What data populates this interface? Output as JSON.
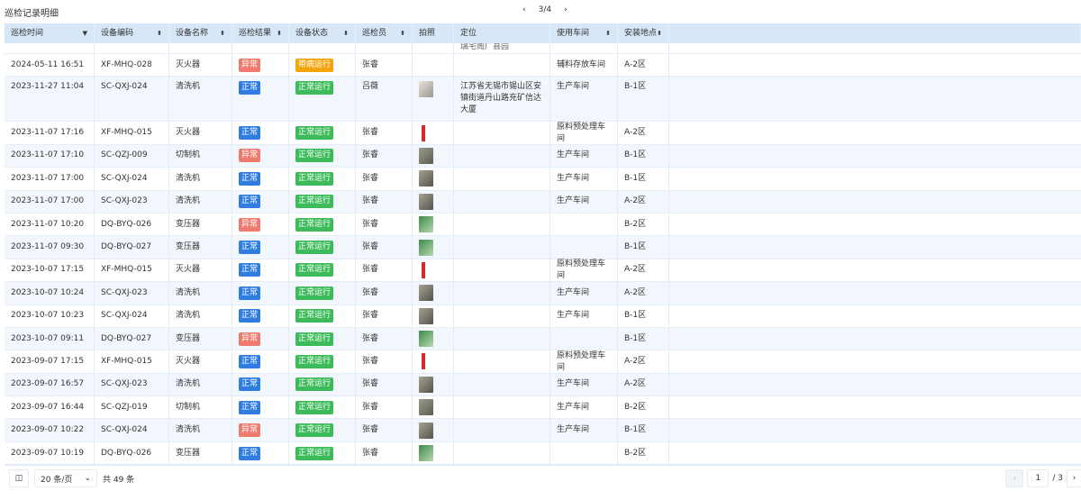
{
  "title": "巡检记录明细",
  "top_pager": {
    "prev": "‹",
    "page": "3/4",
    "next": "›"
  },
  "columns": [
    "巡检时间",
    "设备编码",
    "设备名称",
    "巡检结果",
    "设备状态",
    "巡检员",
    "拍照",
    "定位",
    "使用车间",
    "安装地点"
  ],
  "partial_row_location": "璃宅阁广县园",
  "rows": [
    {
      "time": "2024-05-11 16:51",
      "code": "XF-MHQ-028",
      "name": "灭火器",
      "result": "异常",
      "status": "带病运行",
      "inspector": "张睿",
      "photo": "",
      "location": "",
      "workshop": "辅料存放车间",
      "site": "A-2区"
    },
    {
      "time": "2023-11-27 11:04",
      "code": "SC-QXJ-024",
      "name": "清洗机",
      "result": "正常",
      "status": "正常运行",
      "inspector": "吕薇",
      "photo": "cabinet",
      "location": "江苏省无锡市锡山区安镇街道丹山路充矿信达大厦",
      "workshop": "生产车间",
      "site": "B-1区"
    },
    {
      "time": "2023-11-07 17:16",
      "code": "XF-MHQ-015",
      "name": "灭火器",
      "result": "正常",
      "status": "正常运行",
      "inspector": "张睿",
      "photo": "extinguisher",
      "location": "",
      "workshop": "原料预处理车间",
      "site": "A-2区"
    },
    {
      "time": "2023-11-07 17:10",
      "code": "SC-QZJ-009",
      "name": "切制机",
      "result": "异常",
      "status": "正常运行",
      "inspector": "张睿",
      "photo": "machine",
      "location": "",
      "workshop": "生产车间",
      "site": "B-1区"
    },
    {
      "time": "2023-11-07 17:00",
      "code": "SC-QXJ-024",
      "name": "清洗机",
      "result": "正常",
      "status": "正常运行",
      "inspector": "张睿",
      "photo": "washer",
      "location": "",
      "workshop": "生产车间",
      "site": "B-1区"
    },
    {
      "time": "2023-11-07 17:00",
      "code": "SC-QXJ-023",
      "name": "清洗机",
      "result": "正常",
      "status": "正常运行",
      "inspector": "张睿",
      "photo": "washer",
      "location": "",
      "workshop": "生产车间",
      "site": "A-2区"
    },
    {
      "time": "2023-11-07 10:20",
      "code": "DQ-BYQ-026",
      "name": "变压器",
      "result": "异常",
      "status": "正常运行",
      "inspector": "张睿",
      "photo": "transformer",
      "location": "",
      "workshop": "",
      "site": "B-2区"
    },
    {
      "time": "2023-11-07 09:30",
      "code": "DQ-BYQ-027",
      "name": "变压器",
      "result": "正常",
      "status": "正常运行",
      "inspector": "张睿",
      "photo": "transformer",
      "location": "",
      "workshop": "",
      "site": "B-1区"
    },
    {
      "time": "2023-10-07 17:15",
      "code": "XF-MHQ-015",
      "name": "灭火器",
      "result": "正常",
      "status": "正常运行",
      "inspector": "张睿",
      "photo": "extinguisher",
      "location": "",
      "workshop": "原料预处理车间",
      "site": "A-2区"
    },
    {
      "time": "2023-10-07 10:24",
      "code": "SC-QXJ-023",
      "name": "清洗机",
      "result": "正常",
      "status": "正常运行",
      "inspector": "张睿",
      "photo": "washer",
      "location": "",
      "workshop": "生产车间",
      "site": "A-2区"
    },
    {
      "time": "2023-10-07 10:23",
      "code": "SC-QXJ-024",
      "name": "清洗机",
      "result": "正常",
      "status": "正常运行",
      "inspector": "张睿",
      "photo": "washer",
      "location": "",
      "workshop": "生产车间",
      "site": "B-1区"
    },
    {
      "time": "2023-10-07 09:11",
      "code": "DQ-BYQ-027",
      "name": "变压器",
      "result": "异常",
      "status": "正常运行",
      "inspector": "张睿",
      "photo": "transformer",
      "location": "",
      "workshop": "",
      "site": "B-1区"
    },
    {
      "time": "2023-09-07 17:15",
      "code": "XF-MHQ-015",
      "name": "灭火器",
      "result": "正常",
      "status": "正常运行",
      "inspector": "张睿",
      "photo": "extinguisher",
      "location": "",
      "workshop": "原料预处理车间",
      "site": "A-2区"
    },
    {
      "time": "2023-09-07 16:57",
      "code": "SC-QXJ-023",
      "name": "清洗机",
      "result": "正常",
      "status": "正常运行",
      "inspector": "张睿",
      "photo": "washer",
      "location": "",
      "workshop": "生产车间",
      "site": "A-2区"
    },
    {
      "time": "2023-09-07 16:44",
      "code": "SC-QZJ-019",
      "name": "切制机",
      "result": "正常",
      "status": "正常运行",
      "inspector": "张睿",
      "photo": "machine",
      "location": "",
      "workshop": "生产车间",
      "site": "B-2区"
    },
    {
      "time": "2023-09-07 10:22",
      "code": "SC-QXJ-024",
      "name": "清洗机",
      "result": "异常",
      "status": "正常运行",
      "inspector": "张睿",
      "photo": "washer",
      "location": "",
      "workshop": "生产车间",
      "site": "B-1区"
    },
    {
      "time": "2023-09-07 10:19",
      "code": "DQ-BYQ-026",
      "name": "变压器",
      "result": "正常",
      "status": "正常运行",
      "inspector": "张睿",
      "photo": "transformer",
      "location": "",
      "workshop": "",
      "site": "B-2区"
    }
  ],
  "colors": {
    "正常": "#2f7de1",
    "异常": "#ef7b6e",
    "正常运行": "#3dbb5b",
    "带病运行": "#f2a50c",
    "header": "#d6e7f8"
  },
  "footer": {
    "page_size": "20 条/页",
    "total": "共 49 条",
    "current_page": "1",
    "total_pages": "/ 3",
    "prev": "‹",
    "next": "›"
  }
}
